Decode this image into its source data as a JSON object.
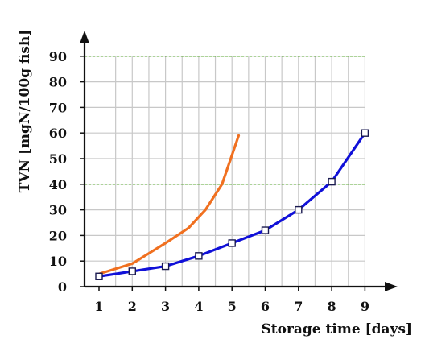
{
  "chart_data": {
    "type": "line",
    "title": "",
    "xlabel": "Storage time [days]",
    "ylabel": "TVN [mgN/100g fish]",
    "xlim": [
      0.6,
      9.5
    ],
    "ylim": [
      0,
      90
    ],
    "x_ticks": [
      "1",
      "2",
      "3",
      "4",
      "5",
      "6",
      "7",
      "8",
      "9"
    ],
    "y_ticks": [
      "0",
      "10",
      "20",
      "30",
      "40",
      "50",
      "60",
      "70",
      "80",
      "90"
    ],
    "grid": true,
    "reference_lines_y": [
      40,
      90
    ],
    "legend": "none",
    "series": [
      {
        "color": "#f07020",
        "marker": "none",
        "x": [
          1,
          2,
          2.5,
          3,
          3.7,
          4.2,
          4.7,
          5.2
        ],
        "y": [
          5,
          9,
          13,
          17,
          23,
          30,
          40,
          59
        ]
      },
      {
        "color": "#1010d8",
        "marker": "square",
        "x": [
          1,
          2,
          3,
          4,
          5,
          6,
          7,
          8,
          9
        ],
        "y": [
          4,
          6,
          8,
          12,
          17,
          22,
          30,
          41,
          60
        ]
      }
    ]
  }
}
